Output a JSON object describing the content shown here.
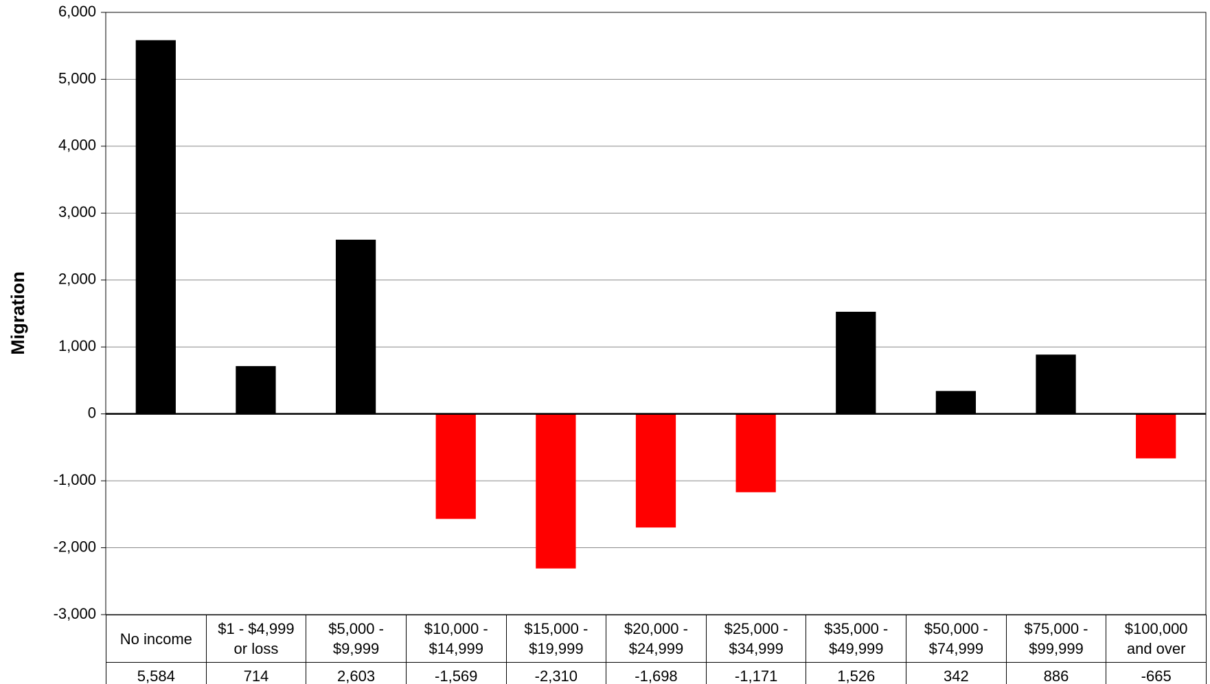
{
  "chart_data": {
    "type": "bar",
    "y_label": "Migration",
    "categories": [
      "No income",
      "$1 - $4,999 or loss",
      "$5,000 - $9,999",
      "$10,000 - $14,999",
      "$15,000 - $19,999",
      "$20,000 - $24,999",
      "$25,000 - $34,999",
      "$35,000 - $49,999",
      "$50,000 - $74,999",
      "$75,000 - $99,999",
      "$100,000 and over"
    ],
    "values": [
      5584,
      714,
      2603,
      -1569,
      -2310,
      -1698,
      -1171,
      1526,
      342,
      886,
      -665
    ],
    "value_labels": [
      "5,584",
      "714",
      "2,603",
      "-1,569",
      "-2,310",
      "-1,698",
      "-1,171",
      "1,526",
      "342",
      "886",
      "-665"
    ],
    "color": "#000000",
    "negative_color": "#ff0000",
    "ylim": [
      -3000,
      6000
    ],
    "yticks": [
      {
        "value": -3000,
        "label": "-3,000"
      },
      {
        "value": -2000,
        "label": "-2,000"
      },
      {
        "value": -1000,
        "label": "-1,000"
      },
      0,
      {
        "value": 1000,
        "label": "1,000"
      },
      {
        "value": 2000,
        "label": "2,000"
      },
      {
        "value": 3000,
        "label": "3,000"
      },
      {
        "value": 4000,
        "label": "4,000"
      },
      {
        "value": 5000,
        "label": "5,000"
      },
      {
        "value": 6000,
        "label": "6,000"
      }
    ],
    "grid": true
  }
}
